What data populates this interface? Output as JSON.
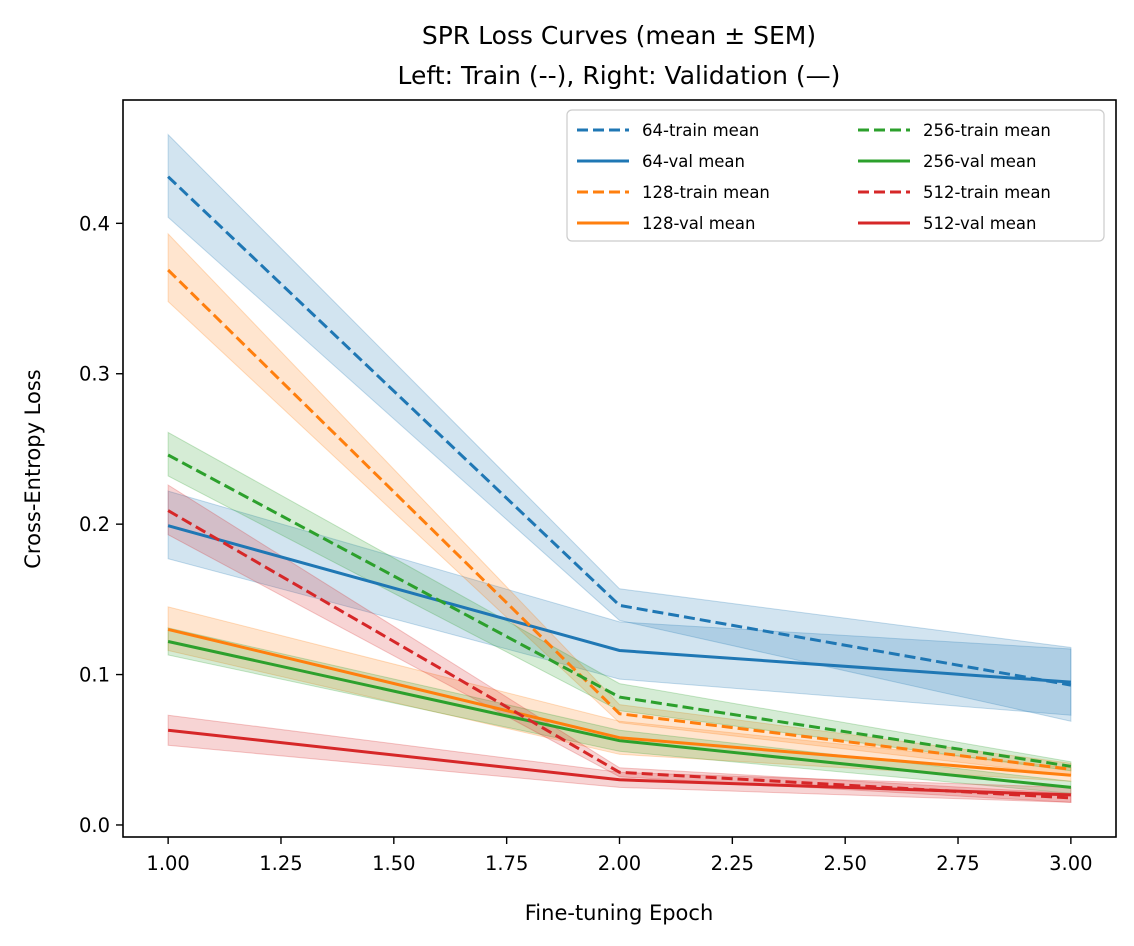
{
  "chart_data": {
    "type": "line",
    "title": "SPR Loss Curves (mean ± SEM)",
    "subtitle": "Left: Train (--), Right: Validation (—)",
    "xlabel": "Fine-tuning Epoch",
    "ylabel": "Cross-Entropy Loss",
    "xlim": [
      0.9,
      3.1
    ],
    "ylim": [
      -0.008,
      0.482
    ],
    "xticks": [
      1.0,
      1.25,
      1.5,
      1.75,
      2.0,
      2.25,
      2.5,
      2.75,
      3.0
    ],
    "xtick_labels": [
      "1.00",
      "1.25",
      "1.50",
      "1.75",
      "2.00",
      "2.25",
      "2.50",
      "2.75",
      "3.00"
    ],
    "yticks": [
      0.0,
      0.1,
      0.2,
      0.3,
      0.4
    ],
    "ytick_labels": [
      "0.0",
      "0.1",
      "0.2",
      "0.3",
      "0.4"
    ],
    "grid": false,
    "legend_position": "top-right",
    "legend_columns": 2,
    "x": [
      1,
      2,
      3
    ],
    "series": [
      {
        "name": "64-train mean",
        "color": "#1f77b4",
        "style": "dashed",
        "values": [
          0.431,
          0.146,
          0.093
        ],
        "lower": [
          0.404,
          0.136,
          0.069
        ],
        "upper": [
          0.459,
          0.157,
          0.118
        ]
      },
      {
        "name": "64-val mean",
        "color": "#1f77b4",
        "style": "solid",
        "values": [
          0.199,
          0.116,
          0.095
        ],
        "lower": [
          0.177,
          0.097,
          0.073
        ],
        "upper": [
          0.222,
          0.135,
          0.117
        ]
      },
      {
        "name": "128-train mean",
        "color": "#ff7f0e",
        "style": "dashed",
        "values": [
          0.369,
          0.074,
          0.037
        ],
        "lower": [
          0.348,
          0.068,
          0.033
        ],
        "upper": [
          0.393,
          0.08,
          0.041
        ]
      },
      {
        "name": "128-val mean",
        "color": "#ff7f0e",
        "style": "solid",
        "values": [
          0.13,
          0.058,
          0.033
        ],
        "lower": [
          0.116,
          0.047,
          0.029
        ],
        "upper": [
          0.145,
          0.069,
          0.038
        ]
      },
      {
        "name": "256-train mean",
        "color": "#2ca02c",
        "style": "dashed",
        "values": [
          0.246,
          0.085,
          0.039
        ],
        "lower": [
          0.232,
          0.076,
          0.036
        ],
        "upper": [
          0.261,
          0.094,
          0.042
        ]
      },
      {
        "name": "256-val mean",
        "color": "#2ca02c",
        "style": "solid",
        "values": [
          0.122,
          0.056,
          0.025
        ],
        "lower": [
          0.113,
          0.049,
          0.021
        ],
        "upper": [
          0.131,
          0.063,
          0.029
        ]
      },
      {
        "name": "512-train mean",
        "color": "#d62728",
        "style": "dashed",
        "values": [
          0.209,
          0.035,
          0.018
        ],
        "lower": [
          0.193,
          0.032,
          0.015
        ],
        "upper": [
          0.226,
          0.038,
          0.021
        ]
      },
      {
        "name": "512-val mean",
        "color": "#d62728",
        "style": "solid",
        "values": [
          0.063,
          0.03,
          0.02
        ],
        "lower": [
          0.053,
          0.025,
          0.015
        ],
        "upper": [
          0.073,
          0.035,
          0.025
        ]
      }
    ]
  }
}
